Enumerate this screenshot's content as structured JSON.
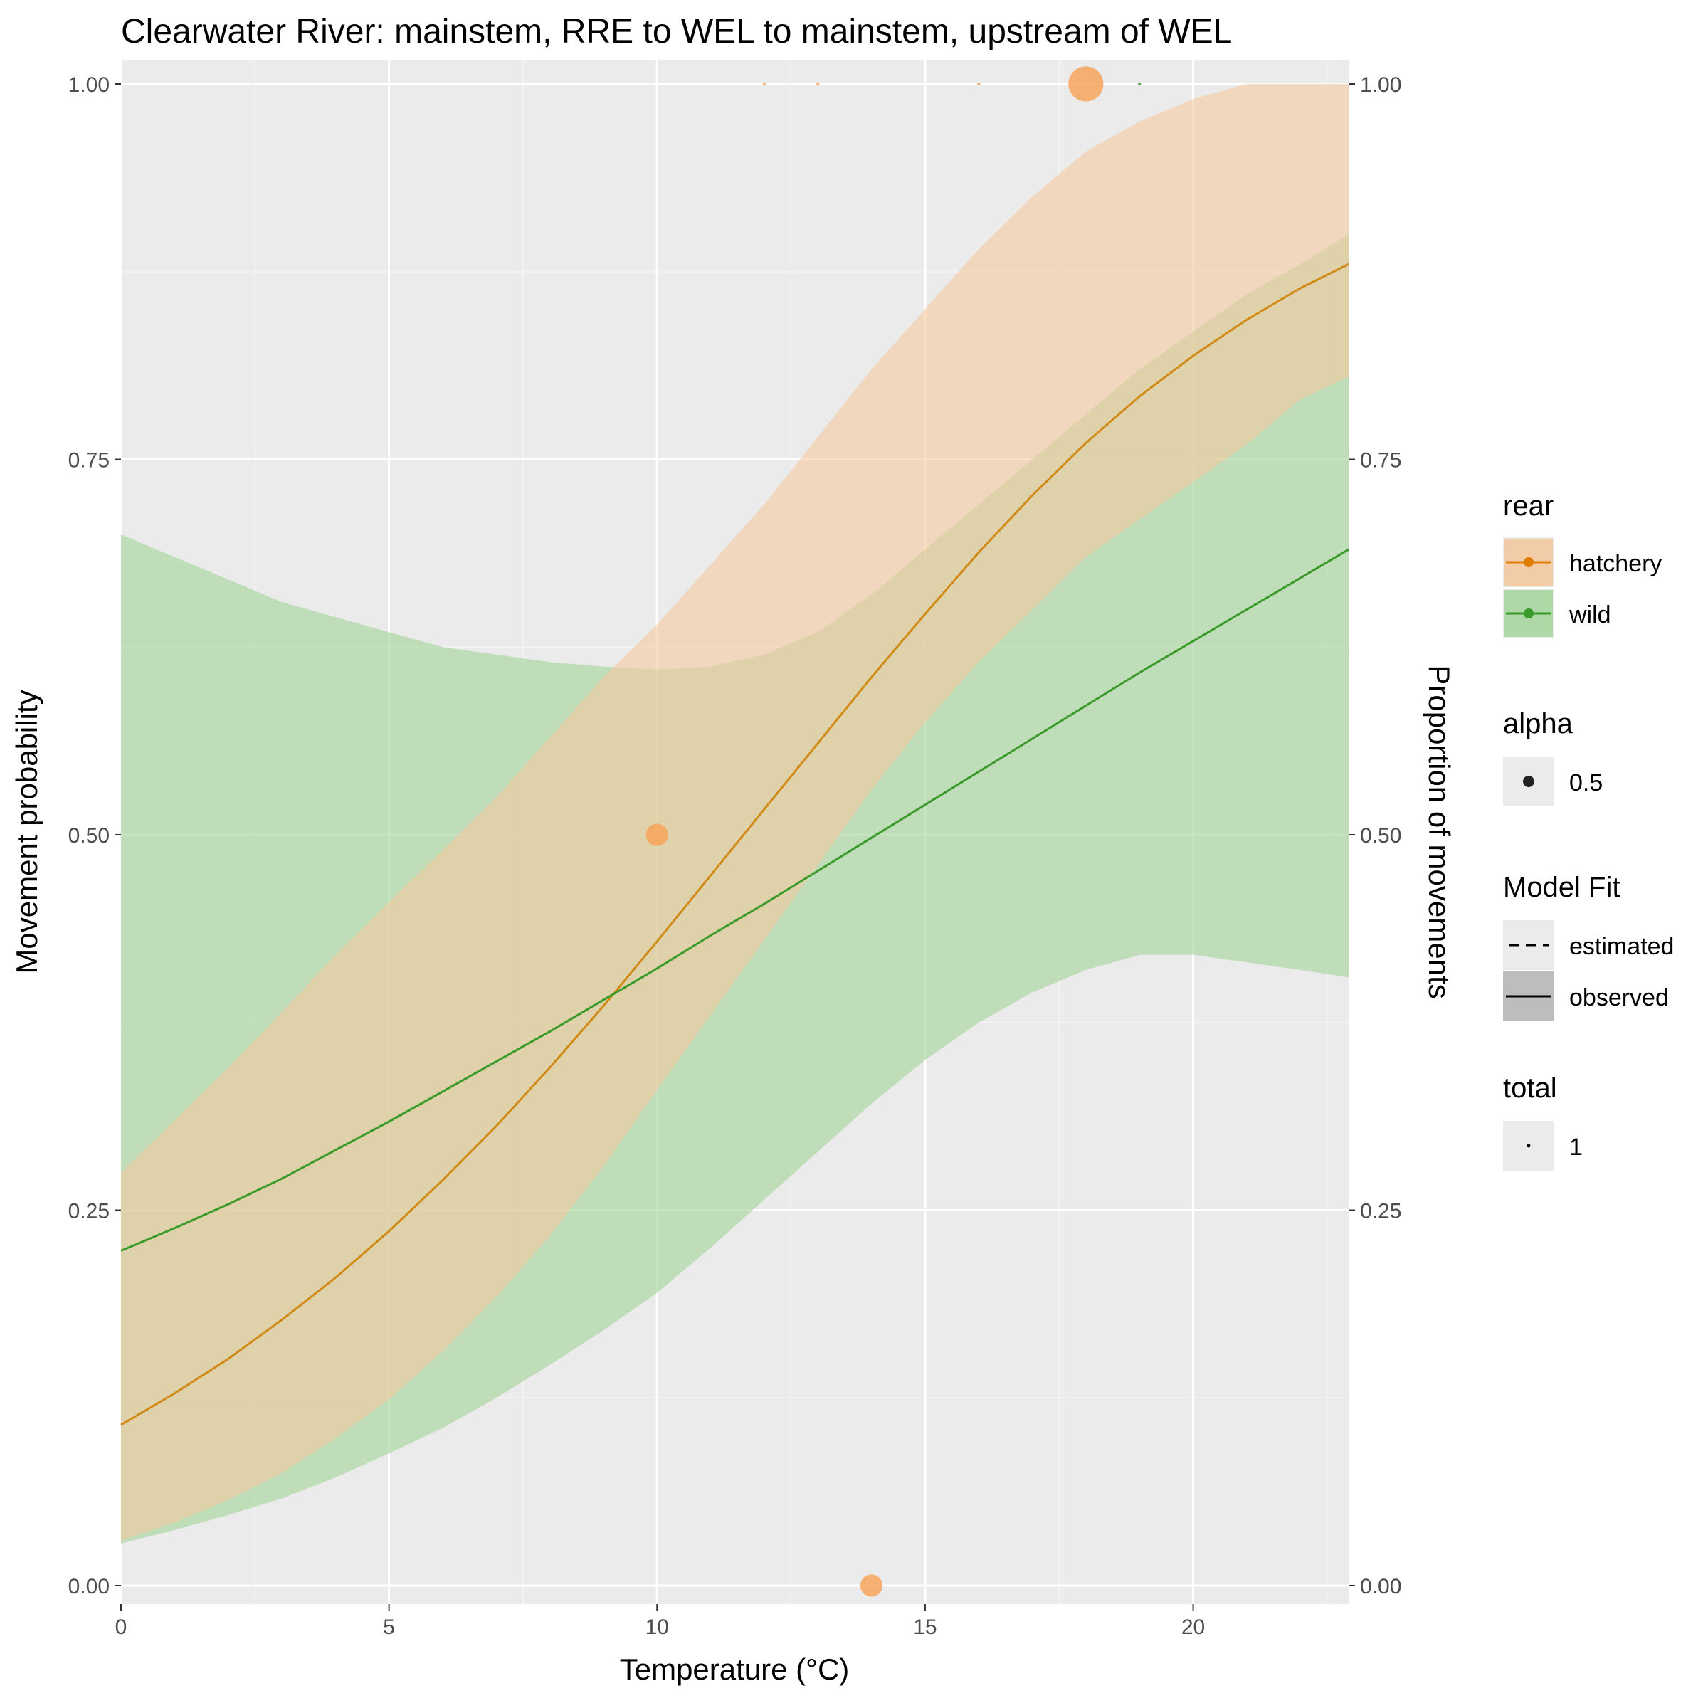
{
  "chart_data": {
    "type": "line",
    "title": "Clearwater River: mainstem, RRE to WEL to mainstem, upstream of WEL",
    "xlabel": "Temperature (°C)",
    "ylabel": "Movement probability",
    "y2label": "Proportion of movements",
    "xlim": [
      0,
      22.9
    ],
    "ylim": [
      0,
      1
    ],
    "x_ticks": [
      0,
      5,
      10,
      15,
      20
    ],
    "x_tick_labels": [
      "0",
      "5",
      "10",
      "15",
      "20"
    ],
    "y_ticks": [
      0,
      0.25,
      0.5,
      0.75,
      1
    ],
    "y_tick_labels": [
      "0.00",
      "0.25",
      "0.50",
      "0.75",
      "1.00"
    ],
    "grid": true,
    "legend_position": "right",
    "series": [
      {
        "name": "hatchery",
        "color": "#e07b00",
        "line_color": "#d18a16",
        "ribbon_color": "#f3c99e",
        "x": [
          0,
          1,
          2,
          3,
          4,
          5,
          6,
          7,
          8,
          9,
          10,
          11,
          12,
          13,
          14,
          15,
          16,
          17,
          18,
          19,
          20,
          21,
          22,
          22.9
        ],
        "y": [
          0.107,
          0.128,
          0.151,
          0.177,
          0.205,
          0.236,
          0.27,
          0.306,
          0.345,
          0.386,
          0.429,
          0.473,
          0.517,
          0.561,
          0.605,
          0.647,
          0.688,
          0.726,
          0.761,
          0.792,
          0.819,
          0.843,
          0.864,
          0.88
        ],
        "lower": [
          0.03,
          0.042,
          0.057,
          0.075,
          0.098,
          0.124,
          0.156,
          0.192,
          0.233,
          0.279,
          0.33,
          0.38,
          0.43,
          0.48,
          0.53,
          0.575,
          0.615,
          0.65,
          0.685,
          0.71,
          0.735,
          0.76,
          0.79,
          0.805
        ],
        "upper": [
          0.275,
          0.31,
          0.345,
          0.382,
          0.42,
          0.455,
          0.49,
          0.525,
          0.565,
          0.605,
          0.64,
          0.68,
          0.72,
          0.765,
          0.81,
          0.85,
          0.89,
          0.925,
          0.955,
          0.975,
          0.99,
          1.0,
          1.0,
          1.0
        ]
      },
      {
        "name": "wild",
        "color": "#3a9a2a",
        "line_color": "#3a9a2a",
        "ribbon_color": "#a9d6a0",
        "x": [
          0,
          1,
          2,
          3,
          4,
          5,
          6,
          7,
          8,
          9,
          10,
          11,
          12,
          13,
          14,
          15,
          16,
          17,
          18,
          19,
          20,
          21,
          22,
          22.9
        ],
        "y": [
          0.223,
          0.238,
          0.254,
          0.271,
          0.29,
          0.309,
          0.329,
          0.349,
          0.369,
          0.39,
          0.411,
          0.433,
          0.454,
          0.476,
          0.498,
          0.52,
          0.542,
          0.564,
          0.586,
          0.608,
          0.629,
          0.65,
          0.671,
          0.69
        ],
        "lower": [
          0.028,
          0.037,
          0.047,
          0.058,
          0.072,
          0.088,
          0.105,
          0.125,
          0.147,
          0.17,
          0.195,
          0.225,
          0.257,
          0.289,
          0.321,
          0.35,
          0.375,
          0.395,
          0.41,
          0.42,
          0.42,
          0.415,
          0.41,
          0.405
        ],
        "upper": [
          0.7,
          0.685,
          0.67,
          0.655,
          0.645,
          0.635,
          0.625,
          0.62,
          0.615,
          0.612,
          0.61,
          0.612,
          0.62,
          0.635,
          0.66,
          0.69,
          0.72,
          0.75,
          0.78,
          0.81,
          0.835,
          0.86,
          0.88,
          0.9
        ]
      }
    ],
    "points": [
      {
        "series": "hatchery",
        "x": 10,
        "y": 0.5,
        "total": 2
      },
      {
        "series": "hatchery",
        "x": 14,
        "y": 0.0,
        "total": 2
      },
      {
        "series": "hatchery",
        "x": 18,
        "y": 1.0,
        "total": 5
      },
      {
        "series": "hatchery",
        "x": 12,
        "y": 1.0,
        "total": 0.04
      },
      {
        "series": "hatchery",
        "x": 13,
        "y": 1.0,
        "total": 0.04
      },
      {
        "series": "hatchery",
        "x": 16,
        "y": 1.0,
        "total": 0.04
      },
      {
        "series": "wild",
        "x": 19,
        "y": 1.0,
        "total": 0.04
      }
    ],
    "legend": {
      "rear": {
        "title": "rear",
        "items": [
          "hatchery",
          "wild"
        ]
      },
      "alpha": {
        "title": "alpha",
        "items": [
          "0.5"
        ]
      },
      "model_fit": {
        "title": "Model Fit",
        "items": [
          "estimated",
          "observed"
        ]
      },
      "total": {
        "title": "total",
        "items": [
          "1"
        ]
      }
    },
    "colors": {
      "panel_background": "#ebebeb",
      "grid_major": "#ffffff",
      "axis_text": "#4d4d4d",
      "text": "#000000",
      "legend_key_background": "#ebebeb",
      "point_fill": "#f7a55a"
    }
  }
}
